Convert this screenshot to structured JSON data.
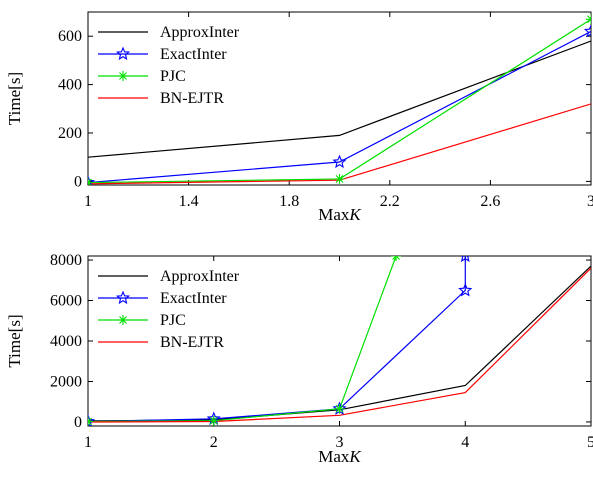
{
  "chart_data": [
    {
      "type": "line",
      "ylabel": "Time[s]",
      "xlabel": "Max",
      "xlabel_italic": "K",
      "xlim": [
        1,
        3
      ],
      "ylim": [
        -15,
        700
      ],
      "x_ticks": [
        1,
        1.4,
        1.8,
        2.2,
        2.6,
        3
      ],
      "x_tick_labels": [
        "1",
        "1.4",
        "1.8",
        "2.2",
        "2.6",
        "3"
      ],
      "y_ticks": [
        0,
        200,
        400,
        600
      ],
      "y_tick_labels": [
        "0",
        "200",
        "400",
        "600"
      ],
      "legend_position": "top-left",
      "series": [
        {
          "name": "ApproxInter",
          "color": "#000000",
          "marker": "none",
          "points": [
            [
              1,
              100
            ],
            [
              2,
              190
            ],
            [
              3,
              580
            ]
          ]
        },
        {
          "name": "ExactInter",
          "color": "#0000ff",
          "marker": "star",
          "points": [
            [
              1,
              -5
            ],
            [
              2,
              80
            ],
            [
              3,
              620
            ]
          ]
        },
        {
          "name": "PJC",
          "color": "#00e000",
          "marker": "asterisk",
          "points": [
            [
              1,
              -5
            ],
            [
              2,
              10
            ],
            [
              3,
              670
            ]
          ]
        },
        {
          "name": "BN-EJTR",
          "color": "#ff0000",
          "marker": "none",
          "points": [
            [
              1,
              -10
            ],
            [
              2,
              5
            ],
            [
              3,
              320
            ]
          ]
        }
      ]
    },
    {
      "type": "line",
      "ylabel": "Time[s]",
      "xlabel": "Max",
      "xlabel_italic": "K",
      "xlim": [
        1,
        5
      ],
      "ylim": [
        -200,
        8200
      ],
      "x_ticks": [
        1,
        2,
        3,
        4,
        5
      ],
      "x_tick_labels": [
        "1",
        "2",
        "3",
        "4",
        "5"
      ],
      "y_ticks": [
        0,
        2000,
        4000,
        6000,
        8000
      ],
      "y_tick_labels": [
        "0",
        "2000",
        "4000",
        "6000",
        "8000"
      ],
      "legend_position": "top-left",
      "series": [
        {
          "name": "ApproxInter",
          "color": "#000000",
          "marker": "none",
          "points": [
            [
              1,
              50
            ],
            [
              2,
              100
            ],
            [
              3,
              600
            ],
            [
              4,
              1800
            ],
            [
              5,
              7700
            ]
          ]
        },
        {
          "name": "ExactInter",
          "color": "#0000ff",
          "marker": "star",
          "points": [
            [
              1,
              20
            ],
            [
              2,
              150
            ],
            [
              3,
              650
            ],
            [
              4,
              6500
            ],
            [
              4,
              8200
            ]
          ]
        },
        {
          "name": "PJC",
          "color": "#00e000",
          "marker": "asterisk",
          "points": [
            [
              1,
              20
            ],
            [
              2,
              60
            ],
            [
              3,
              650
            ],
            [
              3.45,
              8200
            ]
          ]
        },
        {
          "name": "BN-EJTR",
          "color": "#ff0000",
          "marker": "none",
          "points": [
            [
              1,
              0
            ],
            [
              2,
              20
            ],
            [
              3,
              330
            ],
            [
              4,
              1450
            ],
            [
              5,
              7600
            ]
          ]
        }
      ]
    }
  ]
}
